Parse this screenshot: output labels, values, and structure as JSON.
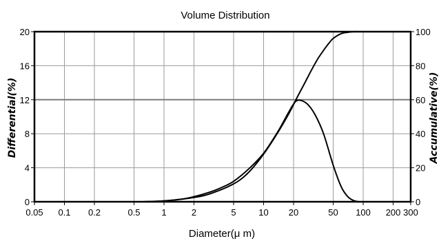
{
  "chart_data": {
    "type": "line",
    "title": "Volume Distribution",
    "xlabel": "Diameter(μ m)",
    "ylabel": "Differential(%)",
    "y2label": "Accumulative(%)",
    "x_scale": "log",
    "xlim": [
      0.05,
      300
    ],
    "ylim": [
      0,
      20
    ],
    "y2lim": [
      0,
      100
    ],
    "x_ticks": [
      0.05,
      0.1,
      0.2,
      0.5,
      1,
      2,
      5,
      10,
      20,
      50,
      100,
      200,
      300
    ],
    "x_tick_labels": [
      "0.05",
      "0.1",
      "0.2",
      "0.5",
      "1",
      "2",
      "5",
      "10",
      "20",
      "50",
      "100",
      "200",
      "300"
    ],
    "y_ticks": [
      0,
      4,
      8,
      12,
      16,
      20
    ],
    "y_tick_labels": [
      "0",
      "4",
      "8",
      "12",
      "16",
      "20"
    ],
    "y2_ticks": [
      0,
      20,
      40,
      60,
      80,
      100
    ],
    "y2_tick_labels": [
      "0",
      "20",
      "40",
      "60",
      "80",
      "100"
    ],
    "grid": true,
    "series": [
      {
        "axis": "left",
        "x": [
          0.6,
          1,
          1.5,
          2,
          3,
          4,
          5,
          7,
          10,
          14,
          18,
          21,
          24,
          28,
          33,
          40,
          50,
          60,
          70,
          80,
          90
        ],
        "values": [
          0,
          0.1,
          0.3,
          0.6,
          1.2,
          1.8,
          2.4,
          3.8,
          5.7,
          8.3,
          10.6,
          11.8,
          11.9,
          11.4,
          10.2,
          8,
          4.3,
          1.8,
          0.6,
          0.15,
          0
        ]
      },
      {
        "axis": "right",
        "x": [
          0.6,
          1,
          2,
          3,
          5,
          7,
          10,
          14,
          18,
          22,
          26,
          30,
          35,
          40,
          45,
          50,
          60,
          70,
          80,
          90
        ],
        "values": [
          0,
          0.5,
          2.5,
          5,
          10.5,
          17,
          28,
          41,
          52,
          62,
          70,
          77,
          84,
          89,
          93,
          96,
          98.8,
          99.6,
          100,
          100
        ]
      }
    ]
  }
}
